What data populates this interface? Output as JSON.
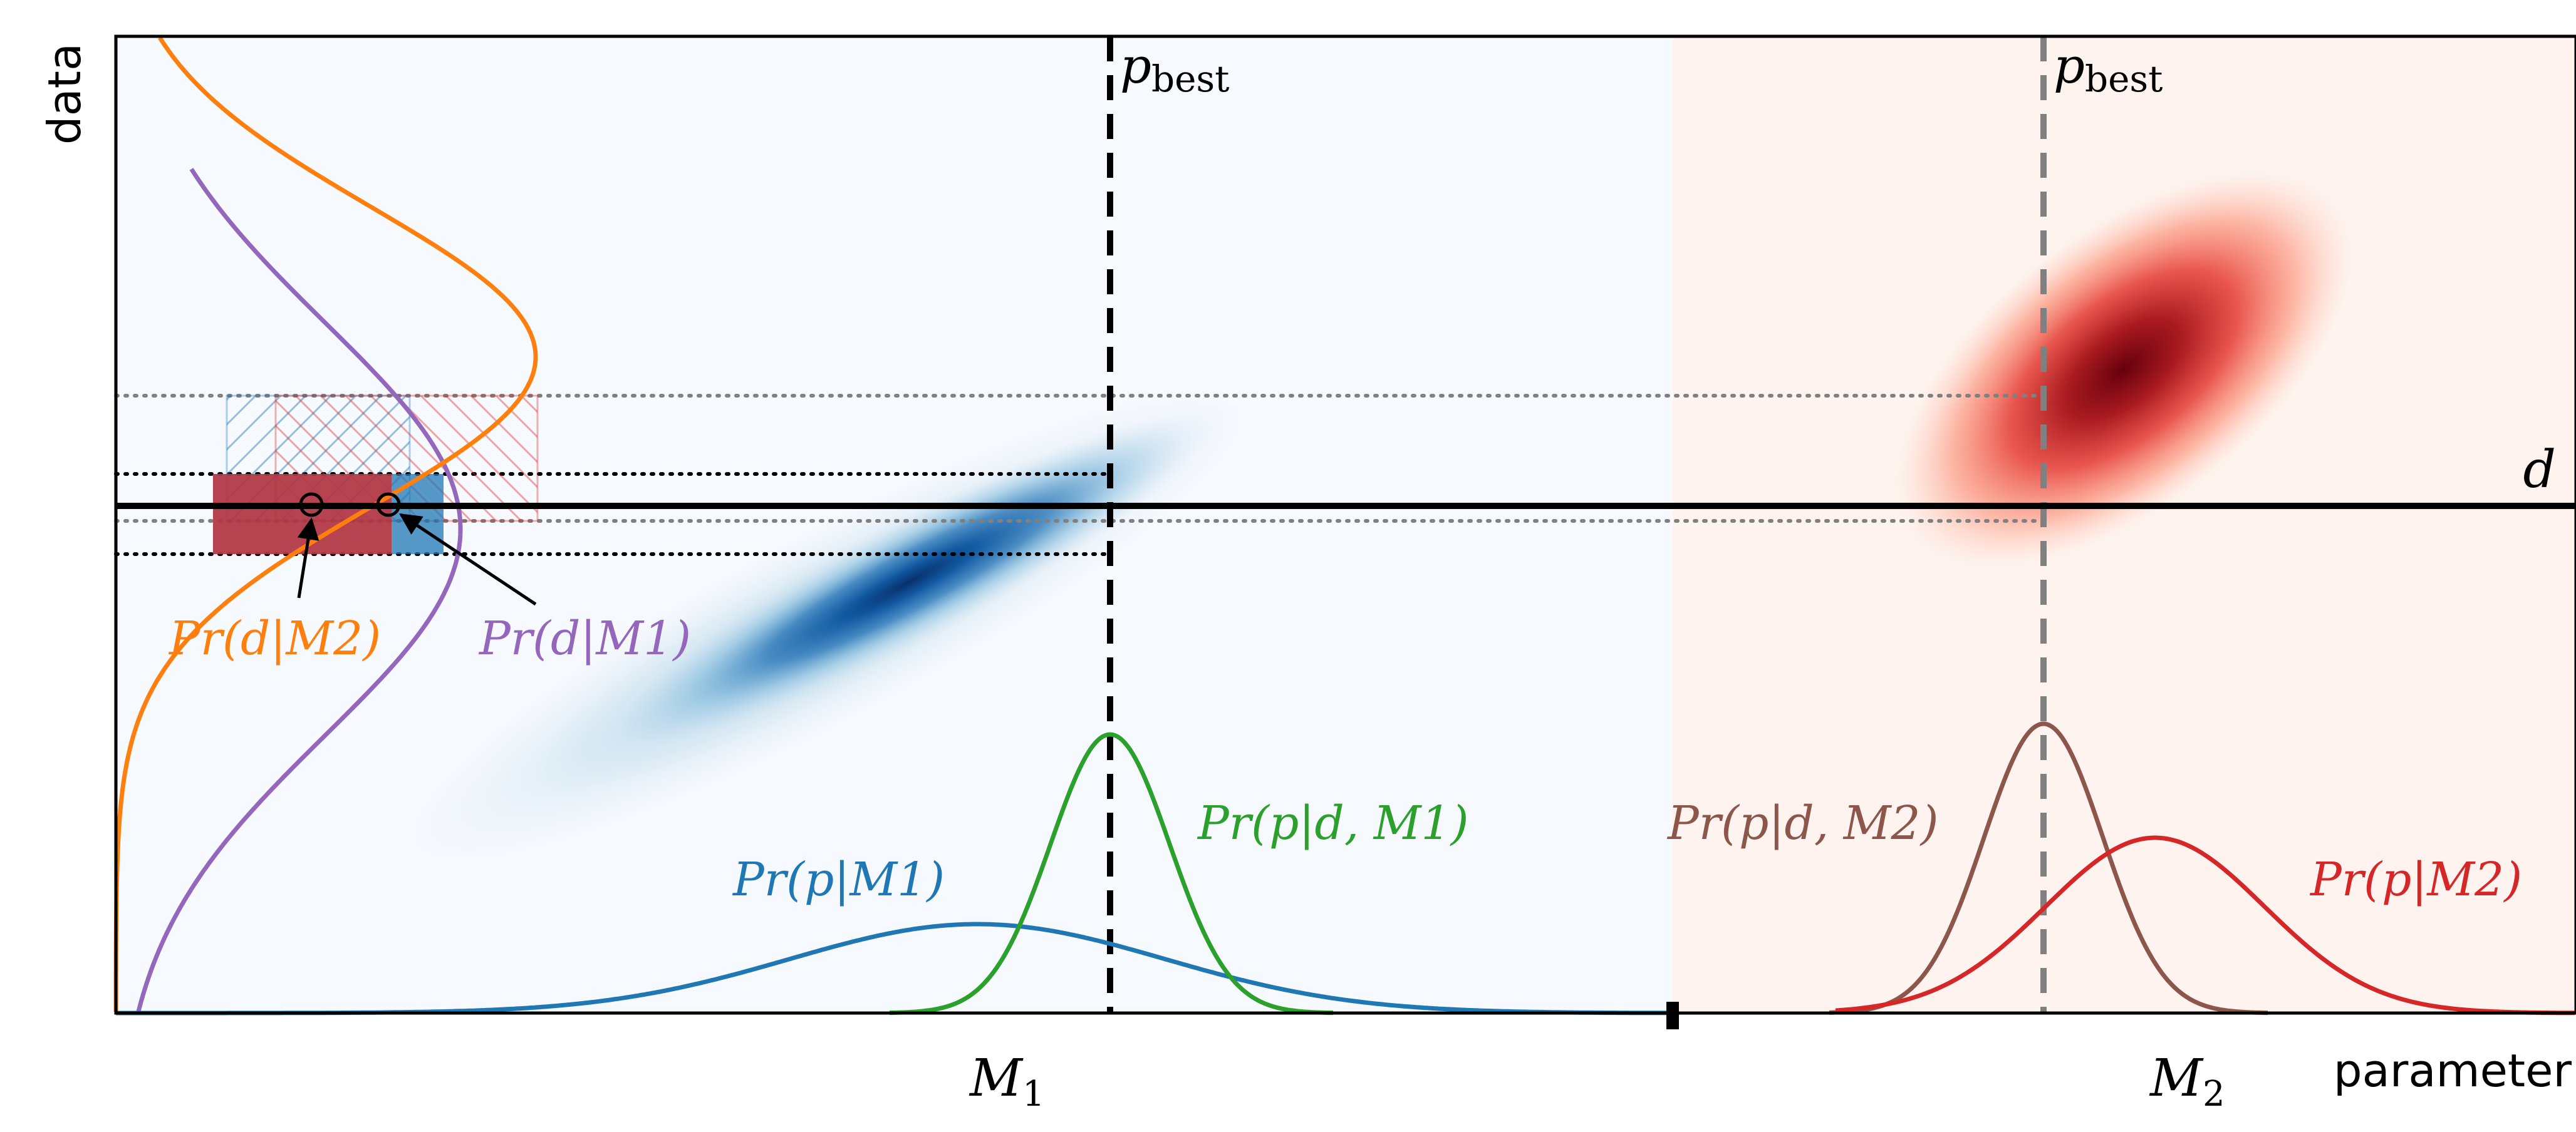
{
  "axes": {
    "x_label": "parameter",
    "y_label": "data",
    "m1_label": "M",
    "m1_sub": "1",
    "m2_label": "M",
    "m2_sub": "2"
  },
  "labels": {
    "pbest_left": "p",
    "pbest_left_sub": "best",
    "pbest_right": "p",
    "pbest_right_sub": "best",
    "d_label": "d",
    "pr_d_m2": "Pr(d|M2)",
    "pr_d_m1": "Pr(d|M1)",
    "pr_p_m1": "Pr(p|M1)",
    "pr_p_d_m1": "Pr(p|d, M1)",
    "pr_p_d_m2": "Pr(p|d, M2)",
    "pr_p_m2": "Pr(p|M2)"
  },
  "colors": {
    "blue": "#1f77b4",
    "orange": "#ff7f0e",
    "green": "#2ca02c",
    "purple": "#9467bd",
    "brown": "#8c564b",
    "red": "#d62728",
    "bg_left": "#f6f9fd",
    "bg_right": "#fef3ee"
  }
}
